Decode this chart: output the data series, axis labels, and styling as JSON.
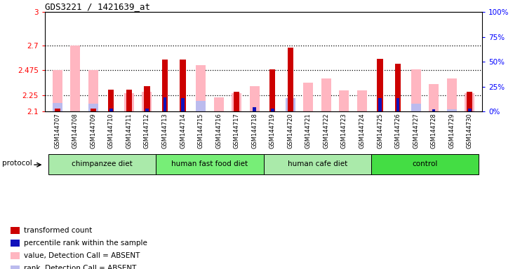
{
  "title": "GDS3221 / 1421639_at",
  "samples": [
    "GSM144707",
    "GSM144708",
    "GSM144709",
    "GSM144710",
    "GSM144711",
    "GSM144712",
    "GSM144713",
    "GSM144714",
    "GSM144715",
    "GSM144716",
    "GSM144717",
    "GSM144718",
    "GSM144719",
    "GSM144720",
    "GSM144721",
    "GSM144722",
    "GSM144723",
    "GSM144724",
    "GSM144725",
    "GSM144726",
    "GSM144727",
    "GSM144728",
    "GSM144729",
    "GSM144730"
  ],
  "red_bars": [
    2.13,
    0.0,
    2.13,
    2.3,
    2.3,
    2.33,
    2.57,
    2.57,
    0.0,
    0.0,
    2.28,
    0.0,
    2.48,
    2.68,
    0.0,
    0.0,
    0.0,
    0.0,
    2.58,
    2.53,
    0.0,
    0.0,
    0.0,
    2.28
  ],
  "pink_bars": [
    2.475,
    2.7,
    2.475,
    0.0,
    2.27,
    2.28,
    0.0,
    0.0,
    2.52,
    2.23,
    2.27,
    2.33,
    0.0,
    0.0,
    2.36,
    2.4,
    2.29,
    2.29,
    0.0,
    0.0,
    2.48,
    2.35,
    2.4,
    2.27
  ],
  "blue_bars": [
    0.0,
    0.0,
    0.0,
    2.13,
    0.0,
    2.13,
    2.23,
    2.22,
    0.0,
    0.0,
    0.0,
    2.14,
    2.13,
    0.0,
    0.0,
    0.0,
    0.0,
    0.0,
    2.22,
    2.22,
    0.0,
    2.12,
    0.0,
    2.13
  ],
  "lightblue_bars": [
    2.18,
    0.0,
    2.17,
    0.0,
    0.0,
    0.0,
    0.0,
    0.0,
    2.2,
    0.0,
    0.0,
    0.0,
    0.0,
    2.22,
    0.0,
    0.0,
    0.0,
    0.0,
    0.0,
    0.0,
    2.17,
    0.0,
    2.12,
    0.0
  ],
  "groups": [
    {
      "label": "chimpanzee diet",
      "start": 0,
      "end": 5
    },
    {
      "label": "human fast food diet",
      "start": 6,
      "end": 11
    },
    {
      "label": "human cafe diet",
      "start": 12,
      "end": 17
    },
    {
      "label": "control",
      "start": 18,
      "end": 23
    }
  ],
  "group_colors": [
    "#AAEAAA",
    "#77EE77",
    "#AAEAAA",
    "#44DD44"
  ],
  "ylim_left": [
    2.1,
    3.0
  ],
  "ylim_right": [
    0,
    100
  ],
  "yticks_left": [
    2.1,
    2.25,
    2.475,
    2.7,
    3.0
  ],
  "ytick_labels_left": [
    "2.1",
    "2.25",
    "2.475",
    "2.7",
    "3"
  ],
  "yticks_right": [
    0,
    25,
    50,
    75,
    100
  ],
  "ytick_labels_right": [
    "0%",
    "25%",
    "50%",
    "75%",
    "100%"
  ],
  "hlines": [
    2.25,
    2.475,
    2.7
  ],
  "red_color": "#CC0000",
  "pink_color": "#FFB6C1",
  "blue_color": "#1111BB",
  "lightblue_color": "#BBBBEE",
  "legend_items": [
    {
      "color": "#CC0000",
      "label": "transformed count"
    },
    {
      "color": "#1111BB",
      "label": "percentile rank within the sample"
    },
    {
      "color": "#FFB6C1",
      "label": "value, Detection Call = ABSENT"
    },
    {
      "color": "#BBBBEE",
      "label": "rank, Detection Call = ABSENT"
    }
  ]
}
